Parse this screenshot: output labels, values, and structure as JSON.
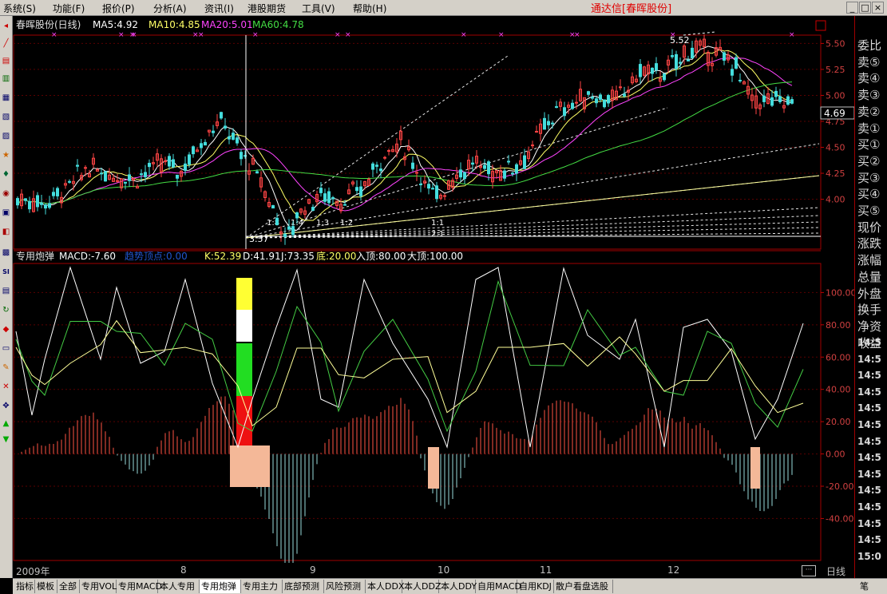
{
  "menu": {
    "items": [
      "系统(S)",
      "功能(F)",
      "报价(P)",
      "分析(A)",
      "资讯(I)",
      "港股期货",
      "工具(V)",
      "帮助(H)"
    ],
    "app_title": "通达信[春晖股份]"
  },
  "window_buttons": [
    "_",
    "□",
    "×"
  ],
  "main_chart": {
    "stock_name": "春晖股份(日线)",
    "ma5": "MA5:4.92",
    "ma10": "MA10:4.85",
    "ma20": "MA20:5.01",
    "ma60": "MA60:4.78",
    "price_ticks": [
      "5.50",
      "5.25",
      "5.00",
      "4.75",
      "4.50",
      "4.25",
      "4.00"
    ],
    "current_price": "4.69",
    "high_label": "5.52",
    "low_label": "3.57",
    "gann_labels": [
      "1:8",
      "1:4",
      "1:3",
      "1:2",
      "1:1",
      "2:1"
    ],
    "colors": {
      "ma5": "#ffffff",
      "ma10": "#ffff66",
      "ma20": "#ff44ff",
      "ma60": "#44dd44",
      "up": "#ff4444",
      "down": "#44dddd"
    }
  },
  "sub_chart": {
    "indicator_name": "专用炮弹",
    "macd": "MACD:-7.60",
    "obscured": "趋势顶点:0.00",
    "k": "K:52.39",
    "d": "D:41.91",
    "j": "J:73.35",
    "bottom": "底:20.00",
    "entry_top": "入顶:80.00",
    "big_top": "大顶:100.00",
    "ticks": [
      "100.00",
      "80.00",
      "60.00",
      "40.00",
      "20.00",
      "0.00",
      "-20.00",
      "-40.00"
    ]
  },
  "date_axis": {
    "labels": [
      "2009年",
      "8",
      "9",
      "10",
      "11",
      "12"
    ],
    "period": "日线"
  },
  "right_panel": {
    "items": [
      "委比",
      "卖⑤",
      "卖④",
      "卖③",
      "卖②",
      "卖①",
      "买①",
      "买②",
      "买③",
      "买④",
      "买⑤",
      "现价",
      "涨跌",
      "涨幅",
      "总量",
      "外盘",
      "换手",
      "净资",
      "收益"
    ],
    "times": [
      "14:5",
      "14:5",
      "14:5",
      "14:5",
      "14:5",
      "14:5",
      "14:5",
      "14:5",
      "14:5",
      "14:5",
      "14:5",
      "14:5",
      "14:5",
      "15:0"
    ]
  },
  "bottom_tabs": {
    "items": [
      "指标",
      "模板",
      "全部",
      "专用VOL",
      "专用MACD",
      "本人专用",
      "专用炮弹",
      "专用主力",
      "底部预测",
      "风险预测",
      "本人DDX",
      "本人DDZ",
      "本人DDY",
      "自用MACD",
      "自用KDJ",
      "散户看盘选股"
    ],
    "active_index": 6,
    "corner": "笔"
  }
}
